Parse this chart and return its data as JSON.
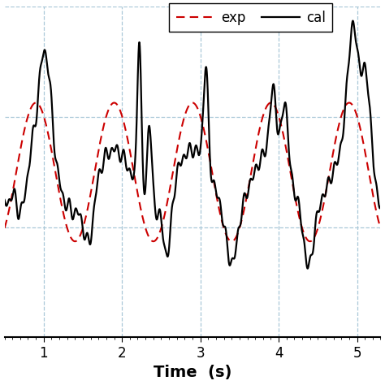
{
  "title": "",
  "xlabel": "Time  (s)",
  "xlabel_fontsize": 14,
  "xlabel_fontweight": "bold",
  "xlim": [
    0.5,
    5.3
  ],
  "ylim": [
    -1.05,
    1.05
  ],
  "xticks": [
    1,
    2,
    3,
    4,
    5
  ],
  "grid_color": "#aac8d8",
  "grid_linestyle": "--",
  "grid_linewidth": 0.9,
  "exp_color": "#cc0000",
  "exp_linestyle": "--",
  "exp_linewidth": 1.5,
  "cal_color": "#000000",
  "cal_linestyle": "-",
  "cal_linewidth": 1.6,
  "legend_exp": "exp",
  "legend_cal": "cal",
  "legend_fontsize": 12,
  "background_color": "#ffffff",
  "tick_fontsize": 12
}
